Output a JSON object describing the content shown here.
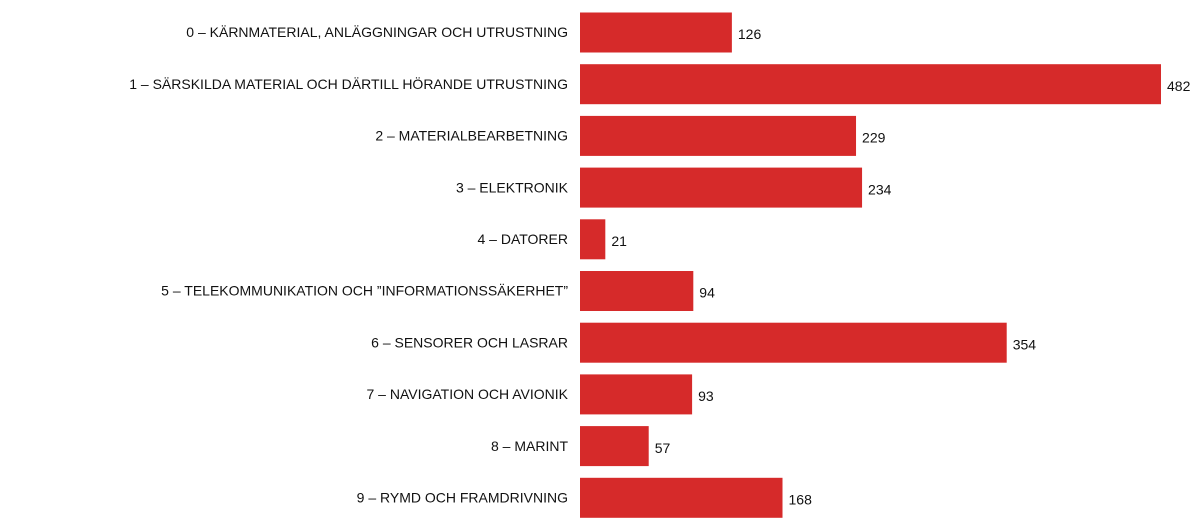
{
  "chart_data": {
    "type": "bar",
    "orientation": "horizontal",
    "color": "#d62a2a",
    "categories": [
      "0 – KÄRNMATERIAL, ANLÄGGNINGAR OCH UTRUSTNING",
      "1 – SÄRSKILDA MATERIAL OCH DÄRTILL HÖRANDE UTRUSTNING",
      "2 – MATERIALBEARBETNING",
      "3 – ELEKTRONIK",
      "4 – DATORER",
      "5 – TELEKOMMUNIKATION OCH ”INFORMATIONSSÄKERHET”",
      "6 – SENSORER OCH LASRAR",
      "7 – NAVIGATION OCH AVIONIK",
      "8 – MARINT",
      "9 – RYMD OCH FRAMDRIVNING"
    ],
    "values": [
      126,
      482,
      229,
      234,
      21,
      94,
      354,
      93,
      57,
      168
    ]
  }
}
